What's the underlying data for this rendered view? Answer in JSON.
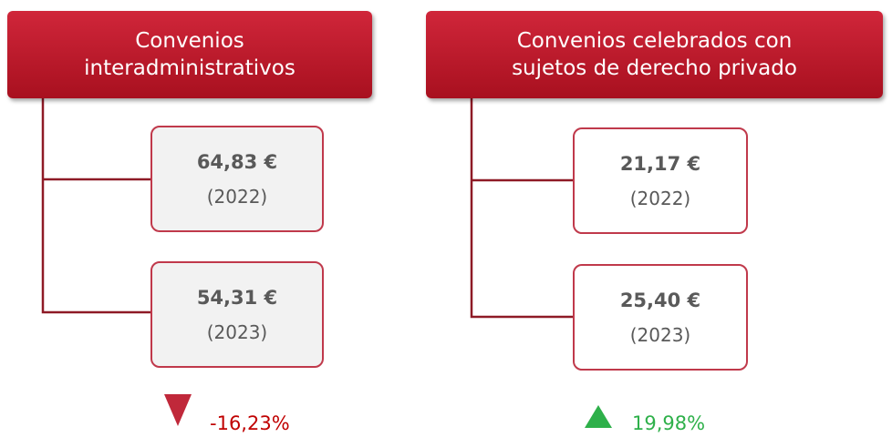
{
  "groups": [
    {
      "title_lines": [
        "Convenios",
        "interadministrativos"
      ],
      "items": [
        {
          "value": "64,83 €",
          "year": "(2022)"
        },
        {
          "value": "54,31 €",
          "year": "(2023)"
        }
      ],
      "change": "-16,23%"
    },
    {
      "title_lines": [
        "Convenios celebrados con",
        "sujetos de derecho privado"
      ],
      "items": [
        {
          "value": "21,17 €",
          "year": "(2022)"
        },
        {
          "value": "25,40 €",
          "year": "(2023)"
        }
      ],
      "change": "19,98%"
    }
  ]
}
